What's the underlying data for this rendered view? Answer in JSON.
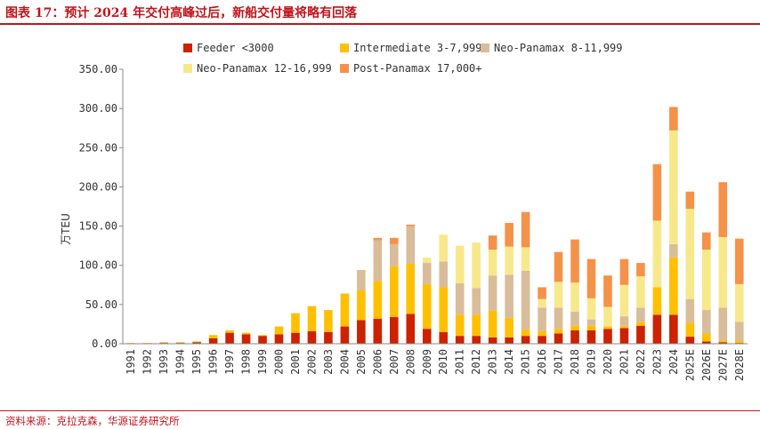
{
  "header": {
    "title": "图表 17：预计 2024 年交付高峰过后，新船交付量将略有回落"
  },
  "footer": {
    "source": "资料来源：克拉克森，华源证券研究所"
  },
  "chart_data": {
    "type": "bar",
    "stacked": true,
    "title": "",
    "xlabel": "",
    "ylabel": "万TEU",
    "ylim": [
      0,
      350
    ],
    "yticks": [
      "0.00",
      "50.00",
      "100.00",
      "150.00",
      "200.00",
      "250.00",
      "300.00",
      "350.00"
    ],
    "grid": false,
    "legend": "top",
    "categories": [
      "1991",
      "1992",
      "1993",
      "1994",
      "1995",
      "1996",
      "1997",
      "1998",
      "1999",
      "2000",
      "2001",
      "2002",
      "2003",
      "2004",
      "2005",
      "2006",
      "2007",
      "2008",
      "2009",
      "2010",
      "2011",
      "2012",
      "2013",
      "2014",
      "2015",
      "2016",
      "2017",
      "2018",
      "2019",
      "2020",
      "2021",
      "2022",
      "2023",
      "2024",
      "2025E",
      "2026E",
      "2027E",
      "2028E"
    ],
    "series": [
      {
        "name": "Feeder <3000",
        "color": "#cc2200",
        "values": [
          0.5,
          0.5,
          1,
          1,
          2,
          7,
          14,
          12,
          10,
          12,
          14,
          16,
          15,
          22,
          30,
          32,
          34,
          38,
          19,
          15,
          10,
          10,
          8,
          8,
          10,
          10,
          13,
          17,
          17,
          19,
          20,
          23,
          37,
          37,
          9,
          3,
          2,
          1
        ]
      },
      {
        "name": "Intermediate 3-7,999",
        "color": "#ffc000",
        "values": [
          0.5,
          0.5,
          1,
          1,
          1,
          4,
          3,
          2,
          1,
          10,
          25,
          32,
          28,
          42,
          38,
          48,
          65,
          64,
          57,
          57,
          27,
          27,
          34,
          25,
          8,
          6,
          6,
          6,
          6,
          3,
          3,
          5,
          35,
          73,
          18,
          10,
          2,
          3
        ]
      },
      {
        "name": "Neo-Panamax 8-11,999",
        "color": "#d9bc99",
        "values": [
          0,
          0,
          0,
          0,
          0,
          0,
          0,
          0,
          0,
          0,
          0,
          0,
          0,
          0,
          26,
          52,
          28,
          48,
          27,
          33,
          40,
          34,
          45,
          55,
          75,
          30,
          27,
          18,
          8,
          0,
          12,
          18,
          0,
          17,
          30,
          30,
          42,
          24
        ]
      },
      {
        "name": "Neo-Panamax 12-16,999",
        "color": "#f7e98b",
        "values": [
          0,
          0,
          0,
          0,
          0,
          0,
          0,
          0,
          0,
          0,
          0,
          0,
          0,
          0,
          0,
          0,
          0,
          0,
          7,
          34,
          48,
          58,
          33,
          36,
          30,
          11,
          33,
          37,
          27,
          25,
          40,
          40,
          85,
          145,
          115,
          77,
          90,
          48
        ]
      },
      {
        "name": "Post-Panamax 17,000+",
        "color": "#f4924a",
        "values": [
          0,
          0,
          0,
          0,
          0,
          0,
          0,
          0,
          0,
          0,
          0,
          0,
          0,
          0,
          0,
          3,
          8,
          2,
          0,
          0,
          0,
          0,
          18,
          30,
          45,
          15,
          38,
          55,
          50,
          40,
          33,
          17,
          72,
          30,
          22,
          22,
          70,
          58
        ]
      }
    ]
  }
}
